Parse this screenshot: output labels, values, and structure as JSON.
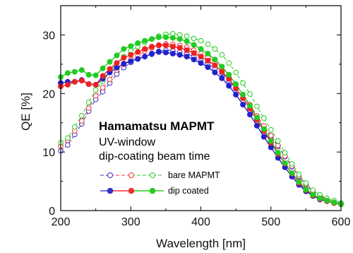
{
  "chart_data": {
    "type": "line",
    "title": "",
    "xlabel": "Wavelength [nm]",
    "ylabel": "QE [%]",
    "xlim": [
      200,
      600
    ],
    "ylim": [
      0,
      35
    ],
    "xticks": [
      200,
      300,
      400,
      500,
      600
    ],
    "yticks": [
      0,
      10,
      20,
      30
    ],
    "grid": false,
    "legend_position": "lower-left",
    "annotations": [
      "Hamamatsu MAPMT",
      "UV-window",
      "dip-coating beam time"
    ],
    "legend_groups": [
      {
        "label": "bare MAPMT",
        "marker": "open",
        "style": "dashed"
      },
      {
        "label": "dip coated",
        "marker": "filled",
        "style": "solid"
      }
    ],
    "x": [
      200,
      210,
      220,
      230,
      240,
      250,
      260,
      270,
      280,
      290,
      300,
      310,
      320,
      330,
      340,
      350,
      360,
      370,
      380,
      390,
      400,
      410,
      420,
      430,
      440,
      450,
      460,
      470,
      480,
      490,
      500,
      510,
      520,
      530,
      540,
      550,
      560,
      570,
      580,
      590,
      600
    ],
    "series": [
      {
        "group": "bare MAPMT",
        "color": "#3333cc",
        "marker": "open",
        "values": [
          10.2,
          11.2,
          13.0,
          14.8,
          17.0,
          19.0,
          20.3,
          21.8,
          23.3,
          24.4,
          25.3,
          25.9,
          26.3,
          26.7,
          27.2,
          27.4,
          27.3,
          27.1,
          26.8,
          26.3,
          25.6,
          25.0,
          24.3,
          23.5,
          22.2,
          20.8,
          19.2,
          17.6,
          15.8,
          14.2,
          12.6,
          11.0,
          9.2,
          7.5,
          5.8,
          4.4,
          3.2,
          2.4,
          1.9,
          1.6,
          1.2
        ]
      },
      {
        "group": "bare MAPMT",
        "color": "#ee3333",
        "marker": "open",
        "values": [
          11.0,
          12.0,
          13.6,
          15.3,
          17.5,
          19.6,
          21.0,
          22.4,
          24.0,
          25.0,
          25.8,
          26.5,
          27.2,
          27.8,
          28.3,
          28.5,
          28.4,
          28.2,
          27.9,
          27.4,
          26.8,
          26.2,
          25.4,
          24.5,
          23.0,
          21.5,
          19.8,
          18.1,
          16.2,
          14.5,
          12.8,
          11.1,
          9.3,
          7.6,
          5.9,
          4.5,
          3.3,
          2.5,
          2.0,
          1.6,
          1.2
        ]
      },
      {
        "group": "bare MAPMT",
        "color": "#22cc22",
        "marker": "open",
        "values": [
          11.6,
          12.4,
          14.3,
          16.2,
          18.5,
          20.6,
          22.1,
          23.6,
          25.2,
          26.3,
          27.3,
          28.0,
          28.7,
          29.3,
          29.8,
          30.1,
          30.2,
          30.0,
          29.8,
          29.4,
          29.0,
          28.4,
          27.6,
          26.6,
          25.2,
          23.6,
          21.8,
          19.9,
          17.8,
          15.8,
          13.8,
          11.9,
          9.9,
          8.0,
          6.2,
          4.7,
          3.5,
          2.7,
          2.1,
          1.7,
          1.3
        ]
      },
      {
        "group": "dip coated",
        "color": "#2222cc",
        "marker": "filled",
        "values": [
          21.8,
          22.0,
          22.0,
          22.3,
          21.6,
          21.5,
          22.5,
          23.6,
          24.4,
          25.1,
          25.5,
          25.9,
          26.3,
          26.8,
          27.1,
          27.0,
          26.8,
          26.6,
          26.3,
          25.8,
          25.2,
          24.5,
          23.6,
          22.6,
          21.3,
          19.8,
          18.1,
          16.4,
          14.5,
          12.6,
          10.8,
          9.0,
          7.4,
          5.8,
          4.4,
          3.3,
          2.5,
          1.9,
          1.6,
          1.3,
          1.1
        ]
      },
      {
        "group": "dip coated",
        "color": "#ee2222",
        "marker": "filled",
        "values": [
          21.2,
          21.5,
          22.0,
          22.2,
          21.6,
          21.5,
          23.0,
          24.2,
          25.2,
          26.1,
          26.6,
          27.1,
          27.6,
          28.0,
          28.2,
          28.2,
          28.0,
          27.8,
          27.4,
          26.9,
          26.3,
          25.6,
          24.8,
          23.7,
          22.5,
          20.9,
          19.2,
          17.4,
          15.5,
          13.6,
          11.6,
          9.7,
          8.0,
          6.3,
          4.7,
          3.5,
          2.6,
          2.0,
          1.6,
          1.3,
          1.1
        ]
      },
      {
        "group": "dip coated",
        "color": "#22cc22",
        "marker": "filled",
        "values": [
          22.8,
          23.5,
          23.7,
          24.0,
          23.2,
          23.1,
          24.3,
          25.4,
          26.5,
          27.6,
          28.1,
          28.6,
          29.0,
          29.3,
          29.6,
          29.6,
          29.5,
          29.3,
          28.9,
          28.3,
          27.6,
          26.8,
          25.8,
          24.6,
          23.2,
          21.6,
          19.8,
          17.9,
          15.9,
          13.9,
          11.9,
          9.9,
          8.1,
          6.4,
          4.9,
          3.6,
          2.7,
          2.1,
          1.7,
          1.4,
          1.1
        ]
      }
    ]
  }
}
